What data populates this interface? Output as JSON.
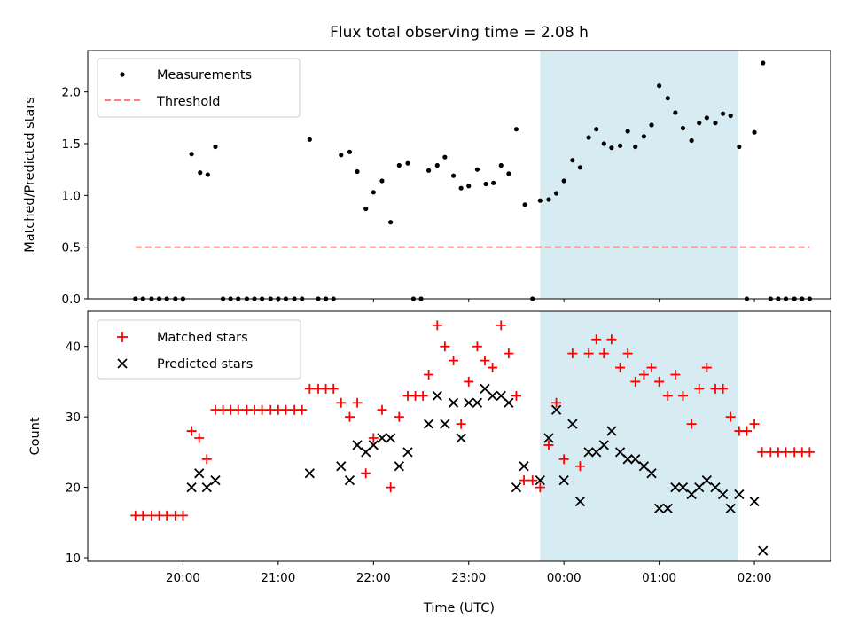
{
  "chart_data": {
    "title": "Flux total observing time = 2.08 h",
    "xlabel": "Time (UTC)",
    "x_unit": "hours_utc_continuous",
    "xlim": [
      19.0,
      26.8
    ],
    "xticks": [
      {
        "v": 20.0,
        "label": "20:00"
      },
      {
        "v": 21.0,
        "label": "21:00"
      },
      {
        "v": 22.0,
        "label": "22:00"
      },
      {
        "v": 23.0,
        "label": "23:00"
      },
      {
        "v": 24.0,
        "label": "00:00"
      },
      {
        "v": 25.0,
        "label": "01:00"
      },
      {
        "v": 26.0,
        "label": "02:00"
      }
    ],
    "highlight_span": {
      "x0": 23.75,
      "x1": 25.83,
      "color": "#add8e6"
    },
    "top": {
      "type": "scatter",
      "ylabel": "Matched/Predicted stars",
      "ylim": [
        0,
        2.4
      ],
      "yticks": [
        0.0,
        0.5,
        1.0,
        1.5,
        2.0
      ],
      "ytick_labels": [
        "0.0",
        "0.5",
        "1.0",
        "1.5",
        "2.0"
      ],
      "legend_position": "upper-left",
      "series": [
        {
          "name": "Measurements",
          "color": "#000000",
          "points": [
            [
              19.5,
              0
            ],
            [
              19.58,
              0
            ],
            [
              19.67,
              0
            ],
            [
              19.75,
              0
            ],
            [
              19.83,
              0
            ],
            [
              19.92,
              0
            ],
            [
              20.0,
              0
            ],
            [
              20.09,
              1.4
            ],
            [
              20.18,
              1.22
            ],
            [
              20.26,
              1.2
            ],
            [
              20.34,
              1.47
            ],
            [
              20.42,
              0
            ],
            [
              20.5,
              0
            ],
            [
              20.58,
              0
            ],
            [
              20.67,
              0
            ],
            [
              20.75,
              0
            ],
            [
              20.83,
              0
            ],
            [
              20.92,
              0
            ],
            [
              21.0,
              0
            ],
            [
              21.08,
              0
            ],
            [
              21.17,
              0
            ],
            [
              21.25,
              0
            ],
            [
              21.33,
              1.54
            ],
            [
              21.42,
              0
            ],
            [
              21.5,
              0
            ],
            [
              21.58,
              0
            ],
            [
              21.66,
              1.39
            ],
            [
              21.75,
              1.42
            ],
            [
              21.83,
              1.23
            ],
            [
              21.92,
              0.87
            ],
            [
              22.0,
              1.03
            ],
            [
              22.09,
              1.14
            ],
            [
              22.18,
              0.74
            ],
            [
              22.27,
              1.29
            ],
            [
              22.36,
              1.31
            ],
            [
              22.42,
              0
            ],
            [
              22.5,
              0
            ],
            [
              22.58,
              1.24
            ],
            [
              22.67,
              1.29
            ],
            [
              22.75,
              1.37
            ],
            [
              22.84,
              1.19
            ],
            [
              22.92,
              1.07
            ],
            [
              23.0,
              1.09
            ],
            [
              23.09,
              1.25
            ],
            [
              23.18,
              1.11
            ],
            [
              23.26,
              1.12
            ],
            [
              23.34,
              1.29
            ],
            [
              23.42,
              1.21
            ],
            [
              23.5,
              1.64
            ],
            [
              23.59,
              0.91
            ],
            [
              23.67,
              0
            ],
            [
              23.75,
              0.95
            ],
            [
              23.84,
              0.96
            ],
            [
              23.92,
              1.02
            ],
            [
              24.0,
              1.14
            ],
            [
              24.09,
              1.34
            ],
            [
              24.17,
              1.27
            ],
            [
              24.26,
              1.56
            ],
            [
              24.34,
              1.64
            ],
            [
              24.42,
              1.5
            ],
            [
              24.5,
              1.46
            ],
            [
              24.59,
              1.48
            ],
            [
              24.67,
              1.62
            ],
            [
              24.75,
              1.47
            ],
            [
              24.84,
              1.57
            ],
            [
              24.92,
              1.68
            ],
            [
              25.0,
              2.06
            ],
            [
              25.09,
              1.94
            ],
            [
              25.17,
              1.8
            ],
            [
              25.25,
              1.65
            ],
            [
              25.34,
              1.53
            ],
            [
              25.42,
              1.7
            ],
            [
              25.5,
              1.75
            ],
            [
              25.59,
              1.7
            ],
            [
              25.67,
              1.79
            ],
            [
              25.75,
              1.77
            ],
            [
              25.84,
              1.47
            ],
            [
              25.92,
              0
            ],
            [
              26.0,
              1.61
            ],
            [
              26.09,
              2.28
            ],
            [
              26.17,
              0
            ],
            [
              26.25,
              0
            ],
            [
              26.33,
              0
            ],
            [
              26.42,
              0
            ],
            [
              26.5,
              0
            ],
            [
              26.58,
              0
            ]
          ]
        }
      ],
      "threshold": {
        "name": "Threshold",
        "y": 0.5,
        "x0": 19.5,
        "x1": 26.58,
        "color": "#ff7f7f"
      }
    },
    "bottom": {
      "type": "scatter",
      "ylabel": "Count",
      "ylim": [
        9.5,
        45
      ],
      "yticks": [
        10,
        20,
        30,
        40
      ],
      "ytick_labels": [
        "10",
        "20",
        "30",
        "40"
      ],
      "legend_position": "upper-left",
      "series": [
        {
          "name": "Matched stars",
          "color": "#ff0000",
          "marker": "plus",
          "points": [
            [
              19.5,
              16
            ],
            [
              19.58,
              16
            ],
            [
              19.67,
              16
            ],
            [
              19.75,
              16
            ],
            [
              19.83,
              16
            ],
            [
              19.92,
              16
            ],
            [
              20.0,
              16
            ],
            [
              20.09,
              28
            ],
            [
              20.17,
              27
            ],
            [
              20.25,
              24
            ],
            [
              20.34,
              31
            ],
            [
              20.42,
              31
            ],
            [
              20.5,
              31
            ],
            [
              20.58,
              31
            ],
            [
              20.67,
              31
            ],
            [
              20.75,
              31
            ],
            [
              20.83,
              31
            ],
            [
              20.92,
              31
            ],
            [
              21.0,
              31
            ],
            [
              21.08,
              31
            ],
            [
              21.17,
              31
            ],
            [
              21.25,
              31
            ],
            [
              21.33,
              34
            ],
            [
              21.42,
              34
            ],
            [
              21.5,
              34
            ],
            [
              21.58,
              34
            ],
            [
              21.66,
              32
            ],
            [
              21.75,
              30
            ],
            [
              21.83,
              32
            ],
            [
              21.92,
              22
            ],
            [
              22.0,
              27
            ],
            [
              22.09,
              31
            ],
            [
              22.18,
              20
            ],
            [
              22.27,
              30
            ],
            [
              22.36,
              33
            ],
            [
              22.44,
              33
            ],
            [
              22.52,
              33
            ],
            [
              22.58,
              36
            ],
            [
              22.67,
              43
            ],
            [
              22.75,
              40
            ],
            [
              22.84,
              38
            ],
            [
              22.92,
              29
            ],
            [
              23.0,
              35
            ],
            [
              23.09,
              40
            ],
            [
              23.17,
              38
            ],
            [
              23.25,
              37
            ],
            [
              23.34,
              43
            ],
            [
              23.42,
              39
            ],
            [
              23.5,
              33
            ],
            [
              23.58,
              21
            ],
            [
              23.67,
              21
            ],
            [
              23.75,
              20
            ],
            [
              23.84,
              26
            ],
            [
              23.92,
              32
            ],
            [
              24.0,
              24
            ],
            [
              24.09,
              39
            ],
            [
              24.17,
              23
            ],
            [
              24.26,
              39
            ],
            [
              24.34,
              41
            ],
            [
              24.42,
              39
            ],
            [
              24.5,
              41
            ],
            [
              24.59,
              37
            ],
            [
              24.67,
              39
            ],
            [
              24.75,
              35
            ],
            [
              24.84,
              36
            ],
            [
              24.92,
              37
            ],
            [
              25.0,
              35
            ],
            [
              25.09,
              33
            ],
            [
              25.17,
              36
            ],
            [
              25.25,
              33
            ],
            [
              25.34,
              29
            ],
            [
              25.42,
              34
            ],
            [
              25.5,
              37
            ],
            [
              25.59,
              34
            ],
            [
              25.67,
              34
            ],
            [
              25.75,
              30
            ],
            [
              25.84,
              28
            ],
            [
              25.92,
              28
            ],
            [
              26.0,
              29
            ],
            [
              26.08,
              25
            ],
            [
              26.17,
              25
            ],
            [
              26.25,
              25
            ],
            [
              26.33,
              25
            ],
            [
              26.42,
              25
            ],
            [
              26.5,
              25
            ],
            [
              26.58,
              25
            ]
          ]
        },
        {
          "name": "Predicted stars",
          "color": "#000000",
          "marker": "x",
          "points": [
            [
              20.09,
              20
            ],
            [
              20.17,
              22
            ],
            [
              20.25,
              20
            ],
            [
              20.34,
              21
            ],
            [
              21.33,
              22
            ],
            [
              21.66,
              23
            ],
            [
              21.75,
              21
            ],
            [
              21.83,
              26
            ],
            [
              21.92,
              25
            ],
            [
              22.0,
              26
            ],
            [
              22.09,
              27
            ],
            [
              22.18,
              27
            ],
            [
              22.27,
              23
            ],
            [
              22.36,
              25
            ],
            [
              22.58,
              29
            ],
            [
              22.67,
              33
            ],
            [
              22.75,
              29
            ],
            [
              22.84,
              32
            ],
            [
              22.92,
              27
            ],
            [
              23.0,
              32
            ],
            [
              23.09,
              32
            ],
            [
              23.17,
              34
            ],
            [
              23.25,
              33
            ],
            [
              23.34,
              33
            ],
            [
              23.42,
              32
            ],
            [
              23.5,
              20
            ],
            [
              23.58,
              23
            ],
            [
              23.75,
              21
            ],
            [
              23.84,
              27
            ],
            [
              23.92,
              31
            ],
            [
              24.0,
              21
            ],
            [
              24.09,
              29
            ],
            [
              24.17,
              18
            ],
            [
              24.26,
              25
            ],
            [
              24.34,
              25
            ],
            [
              24.42,
              26
            ],
            [
              24.5,
              28
            ],
            [
              24.59,
              25
            ],
            [
              24.67,
              24
            ],
            [
              24.75,
              24
            ],
            [
              24.84,
              23
            ],
            [
              24.92,
              22
            ],
            [
              25.0,
              17
            ],
            [
              25.09,
              17
            ],
            [
              25.17,
              20
            ],
            [
              25.25,
              20
            ],
            [
              25.34,
              19
            ],
            [
              25.42,
              20
            ],
            [
              25.5,
              21
            ],
            [
              25.59,
              20
            ],
            [
              25.67,
              19
            ],
            [
              25.75,
              17
            ],
            [
              25.84,
              19
            ],
            [
              26.0,
              18
            ],
            [
              26.09,
              11
            ]
          ]
        }
      ]
    }
  }
}
